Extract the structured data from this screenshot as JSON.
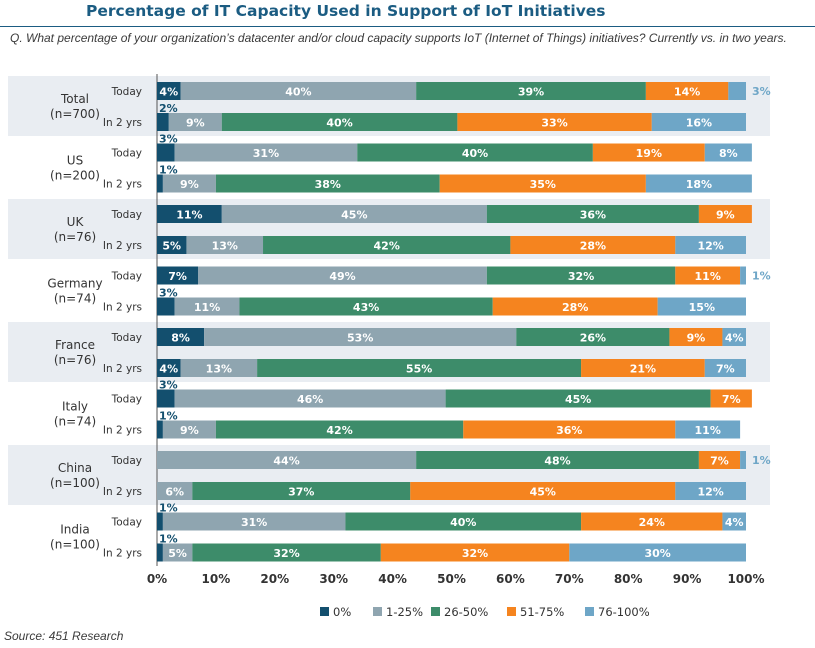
{
  "header": {
    "title": "Percentage of IT Capacity Used in Support of IoT Initiatives",
    "question": "Q. What percentage of your organization’s datacenter and/or cloud capacity supports IoT (Internet of Things) initiatives? Currently vs. in two years."
  },
  "footer": {
    "source": "Source: 451 Research"
  },
  "colors": {
    "0%": "#134f6e",
    "1-25%": "#8fa5b0",
    "26-50%": "#3d8c6a",
    "51-75%": "#f5841f",
    "76-100%": "#6ea6c7",
    "band": "#e9edf2"
  },
  "chart_data": {
    "type": "bar",
    "orientation": "horizontal",
    "stacked": true,
    "xlim": [
      0,
      100
    ],
    "xticks": [
      "0%",
      "10%",
      "20%",
      "30%",
      "40%",
      "50%",
      "60%",
      "70%",
      "80%",
      "90%",
      "100%"
    ],
    "legend": [
      "0%",
      "1-25%",
      "26-50%",
      "51-75%",
      "76-100%"
    ],
    "legend_position": "bottom",
    "groups": [
      {
        "name": "Total",
        "n": "(n=700)",
        "rows": [
          {
            "label": "Today",
            "values": [
              4,
              40,
              39,
              14,
              3
            ],
            "labels": [
              "4%",
              "40%",
              "39%",
              "14%",
              "3%"
            ]
          },
          {
            "label": "In 2 yrs",
            "values": [
              2,
              9,
              40,
              33,
              16
            ],
            "labels": [
              "2%",
              "9%",
              "40%",
              "33%",
              "16%"
            ]
          }
        ]
      },
      {
        "name": "US",
        "n": "(n=200)",
        "rows": [
          {
            "label": "Today",
            "values": [
              3,
              31,
              40,
              19,
              8
            ],
            "labels": [
              "3%",
              "31%",
              "40%",
              "19%",
              "8%"
            ]
          },
          {
            "label": "In 2 yrs",
            "values": [
              1,
              9,
              38,
              35,
              18
            ],
            "labels": [
              "1%",
              "9%",
              "38%",
              "35%",
              "18%"
            ]
          }
        ]
      },
      {
        "name": "UK",
        "n": "(n=76)",
        "rows": [
          {
            "label": "Today",
            "values": [
              11,
              45,
              36,
              9,
              0
            ],
            "labels": [
              "11%",
              "45%",
              "36%",
              "9%",
              ""
            ]
          },
          {
            "label": "In 2 yrs",
            "values": [
              5,
              13,
              42,
              28,
              12
            ],
            "labels": [
              "5%",
              "13%",
              "42%",
              "28%",
              "12%"
            ]
          }
        ]
      },
      {
        "name": "Germany",
        "n": "(n=74)",
        "rows": [
          {
            "label": "Today",
            "values": [
              7,
              49,
              32,
              11,
              1
            ],
            "labels": [
              "7%",
              "49%",
              "32%",
              "11%",
              "1%"
            ]
          },
          {
            "label": "In 2 yrs",
            "values": [
              3,
              11,
              43,
              28,
              15
            ],
            "labels": [
              "3%",
              "11%",
              "43%",
              "28%",
              "15%"
            ]
          }
        ]
      },
      {
        "name": "France",
        "n": "(n=76)",
        "rows": [
          {
            "label": "Today",
            "values": [
              8,
              53,
              26,
              9,
              4
            ],
            "labels": [
              "8%",
              "53%",
              "26%",
              "9%",
              "4%"
            ]
          },
          {
            "label": "In 2 yrs",
            "values": [
              4,
              13,
              55,
              21,
              7
            ],
            "labels": [
              "4%",
              "13%",
              "55%",
              "21%",
              "7%"
            ]
          }
        ]
      },
      {
        "name": "Italy",
        "n": "(n=74)",
        "rows": [
          {
            "label": "Today",
            "values": [
              3,
              46,
              45,
              7,
              0
            ],
            "labels": [
              "3%",
              "46%",
              "45%",
              "7%",
              ""
            ]
          },
          {
            "label": "In 2 yrs",
            "values": [
              1,
              9,
              42,
              36,
              11
            ],
            "labels": [
              "1%",
              "9%",
              "42%",
              "36%",
              "11%"
            ]
          }
        ]
      },
      {
        "name": "China",
        "n": "(n=100)",
        "rows": [
          {
            "label": "Today",
            "values": [
              0,
              44,
              48,
              7,
              1
            ],
            "labels": [
              "",
              "44%",
              "48%",
              "7%",
              "1%"
            ]
          },
          {
            "label": "In 2 yrs",
            "values": [
              0,
              6,
              37,
              45,
              12
            ],
            "labels": [
              "",
              "6%",
              "37%",
              "45%",
              "12%"
            ]
          }
        ]
      },
      {
        "name": "India",
        "n": "(n=100)",
        "rows": [
          {
            "label": "Today",
            "values": [
              1,
              31,
              40,
              24,
              4
            ],
            "labels": [
              "1%",
              "31%",
              "40%",
              "24%",
              "4%"
            ]
          },
          {
            "label": "In 2 yrs",
            "values": [
              1,
              5,
              32,
              32,
              30
            ],
            "labels": [
              "1%",
              "5%",
              "32%",
              "32%",
              "30%"
            ]
          }
        ]
      }
    ]
  }
}
